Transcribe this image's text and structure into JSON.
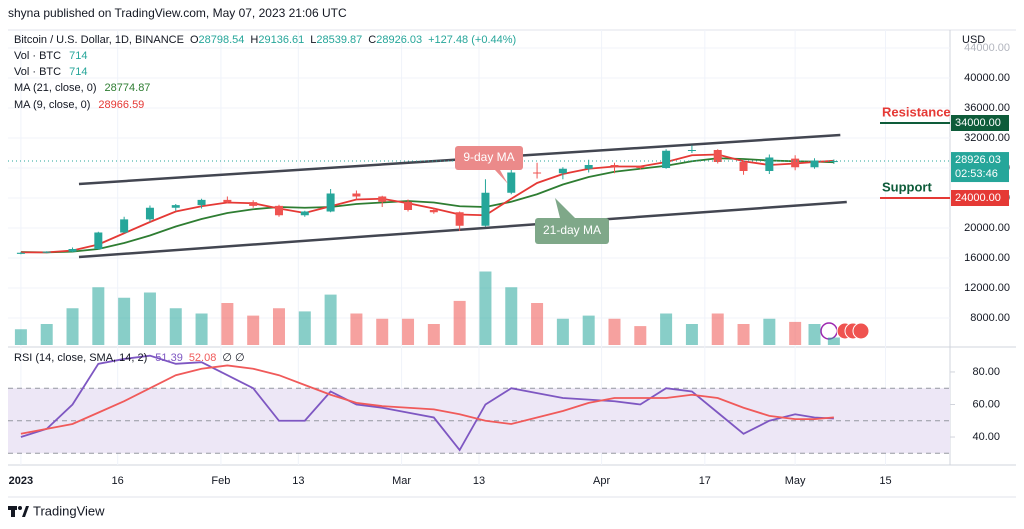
{
  "header": {
    "publisher": "shyna published on TradingView.com, May 07, 2023 21:06 UTC"
  },
  "chart_data": [
    {
      "type": "candlestick",
      "title": "Bitcoin / U.S. Dollar, 1D, BINANCE",
      "ohlc_labels": [
        "O",
        "H",
        "L",
        "C"
      ],
      "change_label": "+127.48 (+0.44%)",
      "currency": "USD",
      "countdown": "02:53:46",
      "x": [
        "2023-01-01",
        "2023-01-05",
        "2023-01-09",
        "2023-01-13",
        "2023-01-17",
        "2023-01-21",
        "2023-01-25",
        "2023-01-29",
        "2023-02-02",
        "2023-02-06",
        "2023-02-10",
        "2023-02-14",
        "2023-02-18",
        "2023-02-22",
        "2023-02-26",
        "2023-03-02",
        "2023-03-06",
        "2023-03-10",
        "2023-03-14",
        "2023-03-18",
        "2023-03-22",
        "2023-03-26",
        "2023-03-30",
        "2023-04-03",
        "2023-04-07",
        "2023-04-11",
        "2023-04-15",
        "2023-04-19",
        "2023-04-23",
        "2023-04-27",
        "2023-05-01",
        "2023-05-04",
        "2023-05-07"
      ],
      "open": [
        16550,
        16700,
        16850,
        17200,
        19400,
        21150,
        22700,
        23050,
        23750,
        23450,
        22950,
        21700,
        22200,
        24600,
        24200,
        23500,
        22400,
        22100,
        20300,
        24700,
        27400,
        27300,
        27900,
        28400,
        28200,
        28000,
        30300,
        30400,
        28800,
        27600,
        29250,
        28100,
        28798.54
      ],
      "high": [
        16800,
        16900,
        17400,
        19500,
        21500,
        23000,
        23200,
        23900,
        24200,
        23700,
        23100,
        22300,
        25200,
        25000,
        24300,
        23800,
        22600,
        22200,
        26500,
        28000,
        28700,
        28100,
        29100,
        28700,
        28300,
        30500,
        31000,
        30500,
        28900,
        29800,
        29700,
        29300,
        29136.61
      ],
      "low": [
        16500,
        16650,
        16800,
        17100,
        19300,
        20800,
        22300,
        22600,
        23300,
        22700,
        21500,
        21500,
        22100,
        23800,
        22800,
        22200,
        21900,
        19600,
        20200,
        24500,
        26600,
        26500,
        27400,
        27300,
        27800,
        27900,
        30000,
        28600,
        27100,
        27200,
        27700,
        27900,
        28539.87
      ],
      "close": [
        16700,
        16850,
        17200,
        19400,
        21150,
        22700,
        23050,
        23750,
        23450,
        22950,
        21700,
        22200,
        24600,
        24200,
        23500,
        22400,
        22100,
        20300,
        24700,
        27400,
        27300,
        27900,
        28400,
        28200,
        28000,
        30300,
        30400,
        28800,
        27600,
        29400,
        28100,
        29000,
        28926.03
      ],
      "up_color": "#26a69a",
      "down_color": "#ef5350",
      "series": [
        {
          "name": "MA (21, close, 0)",
          "color": "#2e7d32",
          "values": [
            16800,
            16750,
            16850,
            17200,
            18000,
            19000,
            20200,
            21200,
            22000,
            22500,
            22800,
            22700,
            22800,
            23200,
            23400,
            23600,
            23400,
            22900,
            22800,
            23500,
            24500,
            25800,
            26800,
            27500,
            27900,
            28300,
            28900,
            29300,
            29200,
            29000,
            28900,
            28850,
            28774.87
          ]
        },
        {
          "name": "MA (9, close, 0)",
          "color": "#e53935",
          "values": [
            16750,
            16750,
            17000,
            17800,
            19300,
            20800,
            22200,
            22900,
            23400,
            23300,
            22600,
            22000,
            22900,
            23800,
            23900,
            23300,
            22600,
            21800,
            21700,
            23900,
            26000,
            27200,
            27900,
            28200,
            28200,
            28800,
            29700,
            29800,
            28900,
            28400,
            28600,
            28800,
            28966.59
          ]
        }
      ],
      "volume": {
        "name": "Vol · BTC",
        "ylim": [
          0,
          30000
        ],
        "values": [
          1500,
          2000,
          3500,
          5500,
          4500,
          5000,
          3500,
          3000,
          4000,
          2800,
          3500,
          3200,
          4800,
          3000,
          2500,
          2500,
          2000,
          4200,
          7000,
          5500,
          4000,
          2500,
          2800,
          2500,
          1800,
          3000,
          2000,
          3000,
          2000,
          2500,
          2200,
          2000,
          714
        ]
      },
      "ylim": [
        4400,
        46400
      ],
      "yticks": [
        {
          "value": 8000,
          "label": "8000.00"
        },
        {
          "value": 12000,
          "label": "12000.00"
        },
        {
          "value": 16000,
          "label": "16000.00"
        },
        {
          "value": 20000,
          "label": "20000.00"
        },
        {
          "value": 24000,
          "label": "24000.00"
        },
        {
          "value": 28000,
          "label": "28000.00"
        },
        {
          "value": 32000,
          "label": "32000.00"
        },
        {
          "value": 36000,
          "label": "36000.00"
        },
        {
          "value": 40000,
          "label": "40000.00"
        },
        {
          "value": 44000,
          "label": "44000.00"
        }
      ],
      "xlim": [
        "2022-12-30",
        "2023-05-25"
      ],
      "xticks": [
        {
          "value": "2023-01-01",
          "label": "2023"
        },
        {
          "value": "2023-01-16",
          "label": "16"
        },
        {
          "value": "2023-02-01",
          "label": "Feb"
        },
        {
          "value": "2023-02-13",
          "label": "13"
        },
        {
          "value": "2023-03-01",
          "label": "Mar"
        },
        {
          "value": "2023-03-13",
          "label": "13"
        },
        {
          "value": "2023-04-01",
          "label": "Apr"
        },
        {
          "value": "2023-04-17",
          "label": "17"
        },
        {
          "value": "2023-05-01",
          "label": "May"
        },
        {
          "value": "2023-05-15",
          "label": "15"
        }
      ],
      "annotations": [
        {
          "text": "9-day MA",
          "color": "#eb8a8a"
        },
        {
          "text": "21-day MA",
          "color": "#7fa889"
        }
      ],
      "levels": [
        {
          "name": "Resistance",
          "value": 34000,
          "label": "34000.00",
          "color": "#0e5c3a",
          "text_color": "#e53935"
        },
        {
          "name": "Support",
          "value": 24000,
          "label": "24000.00",
          "color": "#e53935",
          "text_color": "#0e5c3a"
        }
      ],
      "trendlines": [
        {
          "x": [
            "2023-01-10",
            "2023-05-08"
          ],
          "y": [
            25870,
            32400
          ]
        },
        {
          "x": [
            "2023-01-10",
            "2023-05-09"
          ],
          "y": [
            16130,
            23470
          ]
        }
      ]
    },
    {
      "type": "line",
      "title": "RSI (14, close, SMA, 14, 2)",
      "flags_label": "∅ ∅",
      "x": [
        "2023-01-01",
        "2023-01-05",
        "2023-01-09",
        "2023-01-13",
        "2023-01-17",
        "2023-01-21",
        "2023-01-25",
        "2023-01-29",
        "2023-02-02",
        "2023-02-06",
        "2023-02-10",
        "2023-02-14",
        "2023-02-18",
        "2023-02-22",
        "2023-02-26",
        "2023-03-02",
        "2023-03-06",
        "2023-03-10",
        "2023-03-14",
        "2023-03-18",
        "2023-03-22",
        "2023-03-26",
        "2023-03-30",
        "2023-04-03",
        "2023-04-07",
        "2023-04-11",
        "2023-04-15",
        "2023-04-19",
        "2023-04-23",
        "2023-04-27",
        "2023-05-01",
        "2023-05-04",
        "2023-05-07"
      ],
      "series": [
        {
          "color": "#7e57c2",
          "values": [
            40,
            45,
            60,
            85,
            88,
            90,
            85,
            86,
            78,
            70,
            50,
            50,
            68,
            60,
            58,
            55,
            52,
            32,
            60,
            70,
            67,
            64,
            63,
            62,
            60,
            70,
            68,
            55,
            42,
            50,
            54,
            52,
            51.39
          ]
        },
        {
          "color": "#f05a5a",
          "values": [
            42,
            45,
            48,
            55,
            62,
            70,
            78,
            82,
            84,
            82,
            78,
            72,
            66,
            61,
            59,
            58,
            57,
            54,
            50,
            48,
            52,
            56,
            61,
            64,
            64,
            64,
            66,
            64,
            58,
            53,
            51,
            51,
            52.08
          ]
        }
      ],
      "ylim": [
        22.8,
        93.5
      ],
      "yticks": [
        {
          "value": 40,
          "label": "40.00"
        },
        {
          "value": 60,
          "label": "60.00"
        },
        {
          "value": 80,
          "label": "80.00"
        }
      ],
      "bands": [
        30,
        50,
        70
      ],
      "band_color": "#ede7f6"
    }
  ],
  "footer": {
    "brand": "TradingView"
  }
}
